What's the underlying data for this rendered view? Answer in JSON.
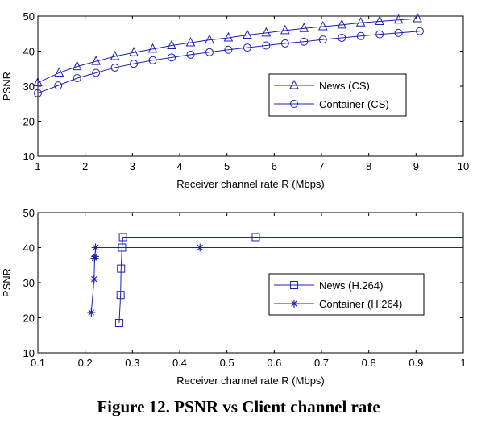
{
  "caption": "Figure 12. PSNR vs Client channel rate",
  "colors": {
    "series": "#1f1fb4",
    "axis": "#000000"
  },
  "chart_data": [
    {
      "type": "line",
      "xlabel": "Receiver channel rate R (Mbps)",
      "ylabel": "PSNR",
      "xlim": [
        1,
        10
      ],
      "ylim": [
        10,
        50
      ],
      "xticks": [
        "1",
        "2",
        "3",
        "4",
        "5",
        "6",
        "7",
        "8",
        "9",
        "10"
      ],
      "yticks": [
        "10",
        "20",
        "30",
        "40",
        "50"
      ],
      "legend": "center-right",
      "grid": false,
      "series": [
        {
          "name": "News (CS)",
          "marker": "triangle",
          "x": [
            1.0,
            1.45,
            1.83,
            2.23,
            2.63,
            3.03,
            3.43,
            3.83,
            4.23,
            4.63,
            5.03,
            5.43,
            5.83,
            6.23,
            6.63,
            7.03,
            7.43,
            7.83,
            8.23,
            8.63,
            9.03
          ],
          "y": [
            31.0,
            33.8,
            35.6,
            37.1,
            38.5,
            39.6,
            40.6,
            41.6,
            42.4,
            43.2,
            43.8,
            44.6,
            45.2,
            45.9,
            46.5,
            47.0,
            47.5,
            48.1,
            48.5,
            48.9,
            49.3
          ]
        },
        {
          "name": "Container (CS)",
          "marker": "circle",
          "x": [
            1.0,
            1.43,
            1.83,
            2.23,
            2.63,
            3.03,
            3.43,
            3.83,
            4.23,
            4.63,
            5.03,
            5.43,
            5.83,
            6.23,
            6.63,
            7.03,
            7.43,
            7.83,
            8.23,
            8.63,
            9.08
          ],
          "y": [
            28.0,
            30.2,
            32.3,
            33.8,
            35.3,
            36.4,
            37.4,
            38.2,
            39.0,
            39.7,
            40.4,
            41.0,
            41.6,
            42.2,
            42.7,
            43.3,
            43.8,
            44.3,
            44.8,
            45.2,
            45.7
          ]
        }
      ]
    },
    {
      "type": "line",
      "xlabel": "Receiver channel rate R (Mbps)",
      "ylabel": "PSNR",
      "xlim": [
        0.1,
        1
      ],
      "ylim": [
        10,
        50
      ],
      "xticks": [
        "0.1",
        "0.2",
        "0.3",
        "0.4",
        "0.5",
        "0.6",
        "0.7",
        "0.8",
        "0.9",
        "1"
      ],
      "yticks": [
        "10",
        "20",
        "30",
        "40",
        "50"
      ],
      "legend": "center-right",
      "grid": false,
      "series": [
        {
          "name": "News (H.264)",
          "marker": "square",
          "x": [
            0.272,
            0.275,
            0.276,
            0.278,
            0.28,
            0.561,
            1.0
          ],
          "y": [
            18.5,
            26.5,
            34.0,
            40.0,
            43.0,
            43.0,
            43.0
          ]
        },
        {
          "name": "Container (H.264)",
          "marker": "star",
          "x": [
            0.213,
            0.219,
            0.22,
            0.221,
            0.222,
            0.443,
            1.0
          ],
          "y": [
            21.5,
            31.0,
            37.0,
            37.5,
            40.0,
            40.0,
            40.0
          ]
        }
      ]
    }
  ]
}
